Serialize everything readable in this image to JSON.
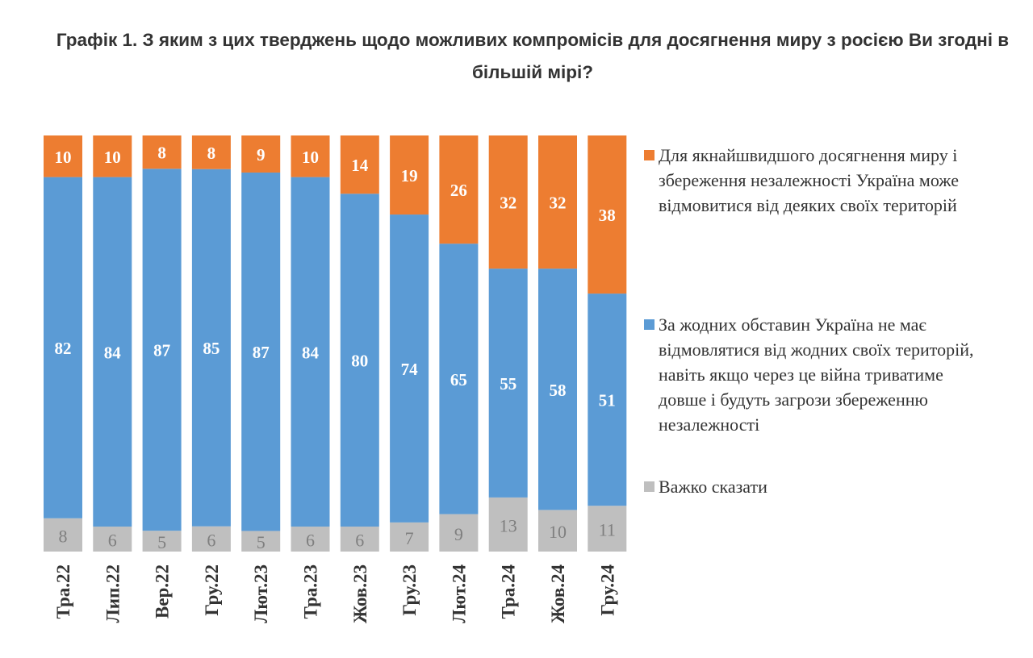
{
  "title": "Графік 1. З яким з цих тверджень щодо можливих компромісів для досягнення миру з росією Ви згодні в більшій мірі?",
  "chart_data": {
    "type": "bar",
    "stacked": true,
    "orientation": "vertical",
    "title": "Графік 1. З яким з цих тверджень щодо можливих компромісів для досягнення миру з росією Ви згодні в більшій мірі?",
    "categories": [
      "Тра.22",
      "Лип.22",
      "Вер.22",
      "Гру.22",
      "Лют.23",
      "Тра.23",
      "Жов.23",
      "Гру.23",
      "Лют.24",
      "Тра.24",
      "Жов.24",
      "Гру.24"
    ],
    "series": [
      {
        "name": "Важко сказати",
        "color": "#bfbfbf",
        "values": [
          8,
          6,
          5,
          6,
          5,
          6,
          6,
          7,
          9,
          13,
          10,
          11
        ]
      },
      {
        "name": "За жодних обставин Україна не має відмовлятися від жодних своїх територій, навіть якщо через це війна триватиме довше і будуть загрози збереженню незалежності",
        "color": "#5b9bd5",
        "values": [
          82,
          84,
          87,
          85,
          87,
          84,
          80,
          74,
          65,
          55,
          58,
          51
        ]
      },
      {
        "name": "Для якнайшвидшого досягнення миру і збереження незалежності Україна може відмовитися від деяких своїх територій",
        "color": "#ed7d31",
        "values": [
          10,
          10,
          8,
          8,
          9,
          10,
          14,
          19,
          26,
          32,
          32,
          38
        ]
      }
    ],
    "legend_position": "right",
    "grid": false,
    "ylim": [
      0,
      100
    ]
  }
}
